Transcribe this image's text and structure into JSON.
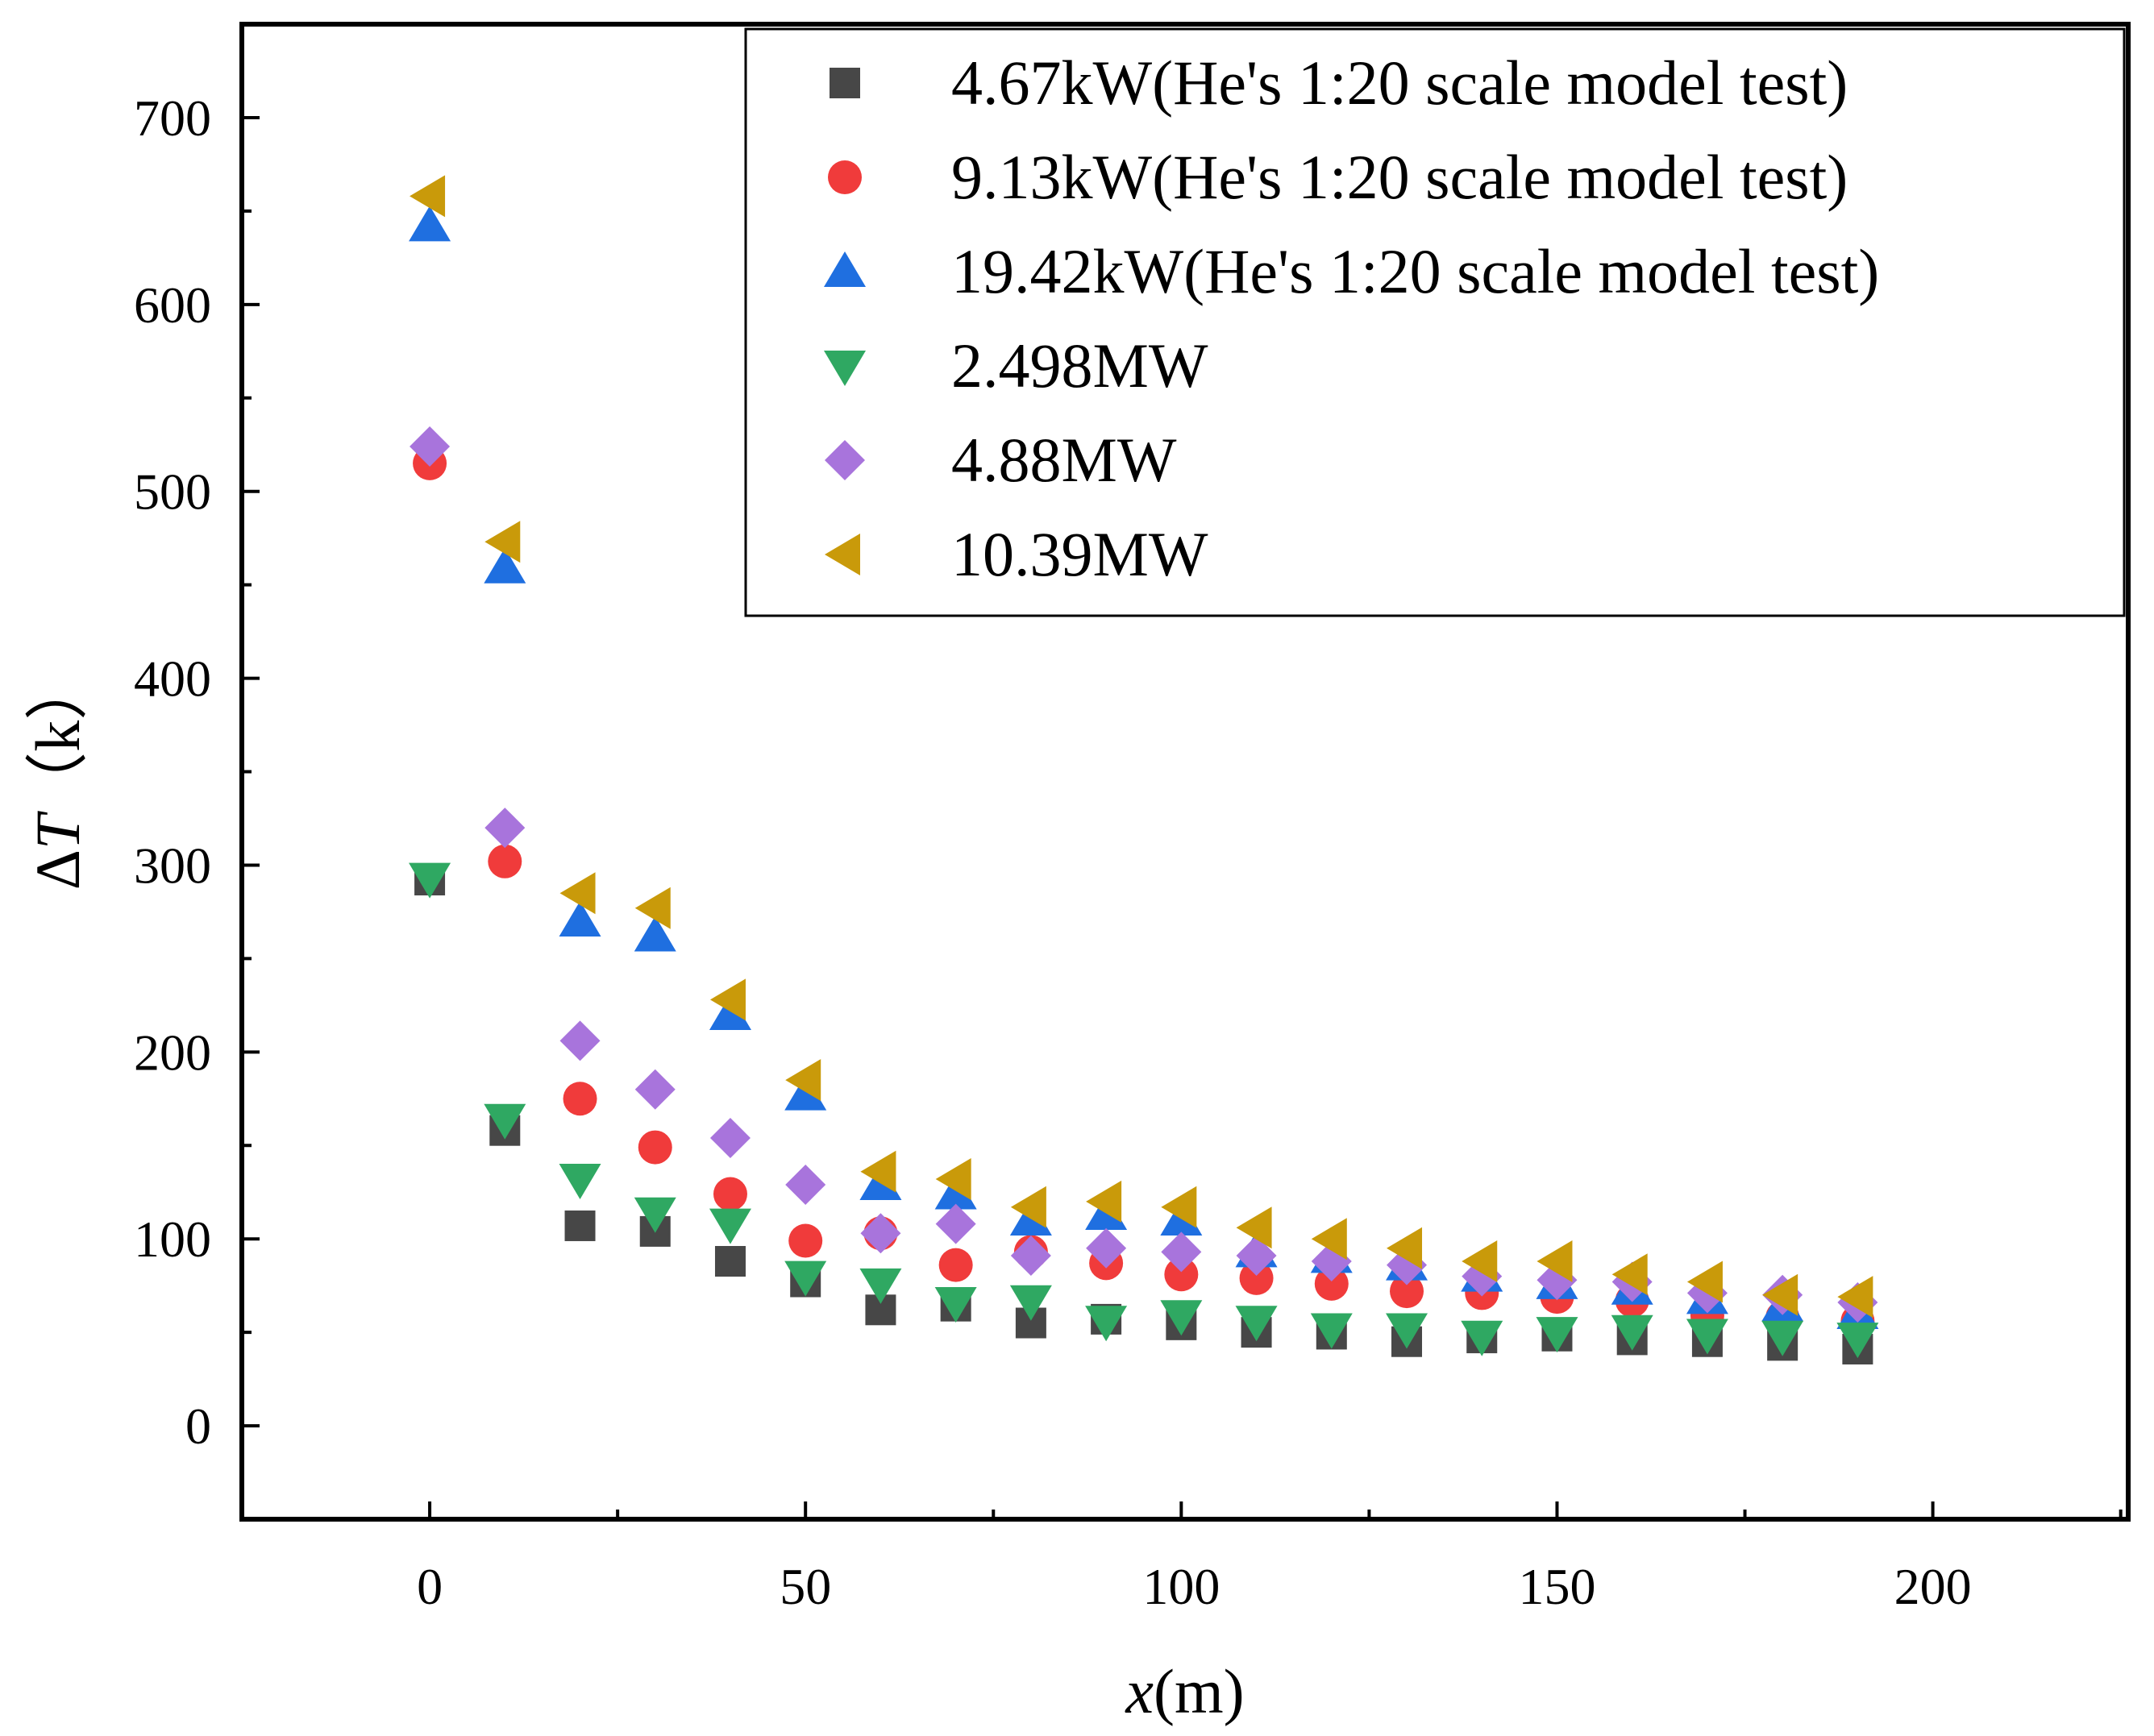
{
  "chart_data": {
    "type": "scatter",
    "title": "",
    "xlabel": "x(m)",
    "xlabel_var": "x",
    "xlabel_unit": "(m)",
    "ylabel": "ΔT（k）",
    "ylabel_prefix": "Δ",
    "ylabel_var": "T",
    "ylabel_unit": "（k）",
    "xlim": [
      -25,
      226
    ],
    "ylim": [
      -50,
      750
    ],
    "xticks": [
      0,
      50,
      100,
      150,
      200
    ],
    "yticks": [
      0,
      100,
      200,
      300,
      400,
      500,
      600,
      700
    ],
    "grid": false,
    "legend_position": "top-right",
    "x": [
      0,
      10,
      20,
      30,
      40,
      50,
      60,
      70,
      80,
      90,
      100,
      110,
      120,
      130,
      140,
      150,
      160,
      170,
      180,
      190
    ],
    "series": [
      {
        "name": "4.67kW(He's 1:20 scale model test)",
        "marker": "square",
        "color": "#474747",
        "values": [
          292,
          158,
          107,
          104,
          88,
          77,
          62,
          64,
          55,
          57,
          54,
          50,
          49,
          45,
          47,
          48,
          46,
          45,
          43,
          41
        ]
      },
      {
        "name": "9.13kW(He's 1:20 scale model test)",
        "marker": "circle",
        "color": "#f03b3b",
        "values": [
          515,
          302,
          175,
          149,
          124,
          99,
          103,
          86,
          93,
          87,
          81,
          79,
          76,
          72,
          71,
          69,
          67,
          59,
          58,
          56
        ]
      },
      {
        "name": "19.42kW(He's 1:20 scale model test)",
        "marker": "triangle-up",
        "color": "#1f6fe0",
        "values": [
          642,
          459,
          270,
          262,
          220,
          177,
          129,
          124,
          110,
          113,
          110,
          93,
          90,
          86,
          80,
          76,
          73,
          68,
          64,
          60
        ]
      },
      {
        "name": "2.498MW",
        "marker": "triangle-down",
        "color": "#2fa862",
        "values": [
          293,
          164,
          132,
          114,
          108,
          80,
          76,
          66,
          67,
          56,
          59,
          56,
          52,
          52,
          48,
          50,
          51,
          49,
          48,
          47
        ]
      },
      {
        "name": "4.88MW",
        "marker": "diamond",
        "color": "#a874dc",
        "values": [
          524,
          320,
          206,
          180,
          154,
          129,
          103,
          108,
          91,
          95,
          93,
          91,
          88,
          86,
          80,
          78,
          77,
          71,
          70,
          66
        ]
      },
      {
        "name": "10.39MW",
        "marker": "triangle-left",
        "color": "#c99a0a",
        "values": [
          658,
          473,
          285,
          277,
          228,
          185,
          136,
          132,
          117,
          120,
          117,
          106,
          100,
          95,
          88,
          88,
          81,
          77,
          70,
          69
        ]
      }
    ]
  }
}
